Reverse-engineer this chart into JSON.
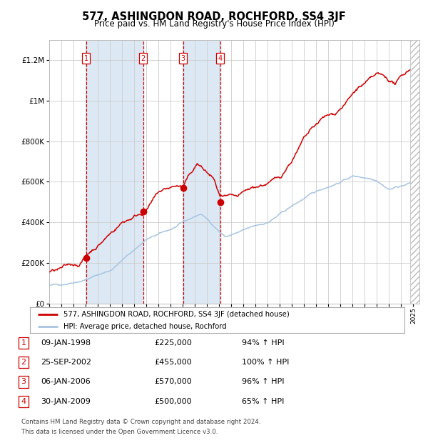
{
  "title": "577, ASHINGDON ROAD, ROCHFORD, SS4 3JF",
  "subtitle": "Price paid vs. HM Land Registry's House Price Index (HPI)",
  "background_color": "#ffffff",
  "plot_bg_color": "#ffffff",
  "grid_color": "#cccccc",
  "hpi_line_color": "#a8c4e0",
  "price_line_color": "#cc0000",
  "shade_color": "#dce9f5",
  "transactions": [
    {
      "num": 1,
      "date": "09-JAN-1998",
      "year": 1998.03,
      "price": 225000,
      "pct": "94%"
    },
    {
      "num": 2,
      "date": "25-SEP-2002",
      "year": 2002.73,
      "price": 455000,
      "pct": "100%"
    },
    {
      "num": 3,
      "date": "06-JAN-2006",
      "year": 2006.03,
      "price": 570000,
      "pct": "96%"
    },
    {
      "num": 4,
      "date": "30-JAN-2009",
      "year": 2009.08,
      "price": 500000,
      "pct": "65%"
    }
  ],
  "ylabel_ticks": [
    0,
    200000,
    400000,
    600000,
    800000,
    1000000,
    1200000
  ],
  "ylabel_labels": [
    "£0",
    "£200K",
    "£400K",
    "£600K",
    "£800K",
    "£1M",
    "£1.2M"
  ],
  "xlim": [
    1995.0,
    2025.5
  ],
  "ylim": [
    0,
    1300000
  ],
  "legend_line1": "577, ASHINGDON ROAD, ROCHFORD, SS4 3JF (detached house)",
  "legend_line2": "HPI: Average price, detached house, Rochford",
  "footer1": "Contains HM Land Registry data © Crown copyright and database right 2024.",
  "footer2": "This data is licensed under the Open Government Licence v3.0.",
  "table_rows": [
    [
      "1",
      "09-JAN-1998",
      "£225,000",
      "94% ↑ HPI"
    ],
    [
      "2",
      "25-SEP-2002",
      "£455,000",
      "100% ↑ HPI"
    ],
    [
      "3",
      "06-JAN-2006",
      "£570,000",
      "96% ↑ HPI"
    ],
    [
      "4",
      "30-JAN-2009",
      "£500,000",
      "65% ↑ HPI"
    ]
  ]
}
